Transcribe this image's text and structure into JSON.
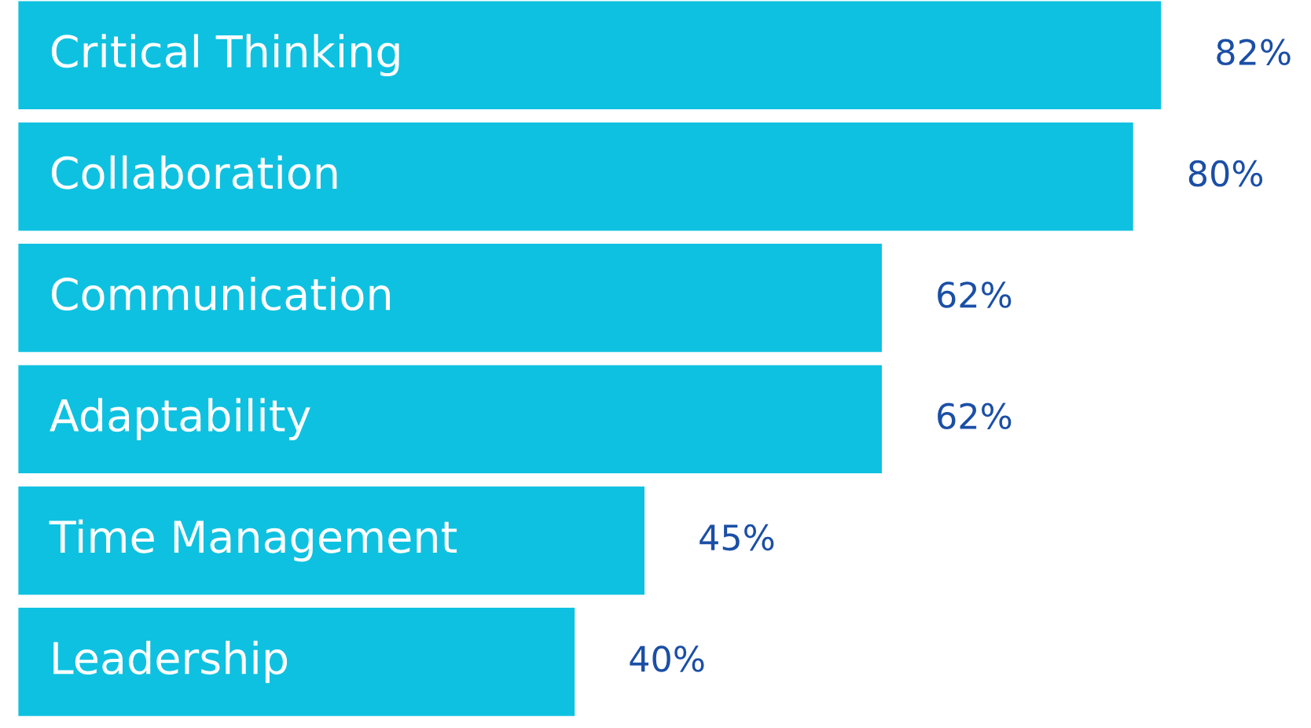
{
  "chart_data": {
    "type": "bar",
    "orientation": "horizontal",
    "categories": [
      "Critical Thinking",
      "Collaboration",
      "Communication",
      "Adaptability",
      "Time Management",
      "Leadership"
    ],
    "values": [
      82,
      80,
      62,
      62,
      45,
      40
    ],
    "value_labels": [
      "82%",
      "80%",
      "62%",
      "62%",
      "45%",
      "40%"
    ],
    "color": "#0fc1e0"
  }
}
